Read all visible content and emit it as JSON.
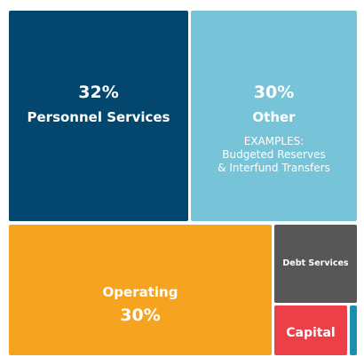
{
  "chart_data": {
    "type": "treemap",
    "items": [
      {
        "label": "Personnel Services",
        "percent_label": "32%",
        "value": 32,
        "color": "#03476f"
      },
      {
        "label": "Other",
        "percent_label": "30%",
        "value": 30,
        "color": "#77c4d8",
        "note": [
          "EXAMPLES:",
          "Budgeted Reserves",
          "& Interfund Transfers"
        ]
      },
      {
        "label": "Operating",
        "percent_label": "30%",
        "value": 30,
        "color": "#f6a31f"
      },
      {
        "label": "Debt Services",
        "color": "#575757"
      },
      {
        "label": "Capital",
        "color": "#ec3f47"
      },
      {
        "label": "",
        "color": "#1a8fb0"
      }
    ]
  }
}
